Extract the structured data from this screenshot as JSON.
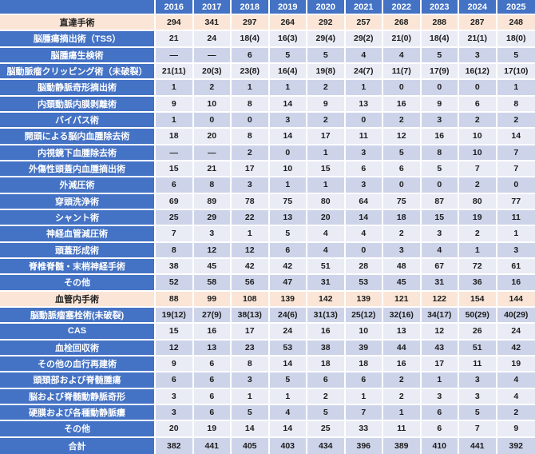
{
  "colors": {
    "header_blue": "#4472C4",
    "section_peach": "#FBE5D6",
    "band_light": "#E9EBF5",
    "band_dark": "#CDD4EA",
    "gridline": "#ffffff",
    "value_text": "#1c1c1c"
  },
  "table": {
    "corner_label": "",
    "years": [
      "2016",
      "2017",
      "2018",
      "2019",
      "2020",
      "2021",
      "2022",
      "2023",
      "2024",
      "2025"
    ],
    "rows": [
      {
        "kind": "section",
        "label": "直達手術",
        "values": [
          "294",
          "341",
          "297",
          "264",
          "292",
          "257",
          "268",
          "288",
          "287",
          "248"
        ]
      },
      {
        "kind": "data",
        "label": "脳腫瘍摘出術（TSS）",
        "values": [
          "21",
          "24",
          "18(4)",
          "16(3)",
          "29(4)",
          "29(2)",
          "21(0)",
          "18(4)",
          "21(1)",
          "18(0)"
        ]
      },
      {
        "kind": "data",
        "label": "脳腫瘍生検術",
        "values": [
          "―",
          "―",
          "6",
          "5",
          "5",
          "4",
          "4",
          "5",
          "3",
          "5"
        ]
      },
      {
        "kind": "data",
        "label": "脳動脈瘤クリッピング術（未破裂）",
        "values": [
          "21(11)",
          "20(3)",
          "23(8)",
          "16(4)",
          "19(8)",
          "24(7)",
          "11(7)",
          "17(9)",
          "16(12)",
          "17(10)"
        ]
      },
      {
        "kind": "data",
        "label": "脳動静脈奇形摘出術",
        "values": [
          "1",
          "2",
          "1",
          "1",
          "2",
          "1",
          "0",
          "0",
          "0",
          "1"
        ]
      },
      {
        "kind": "data",
        "label": "内頚動脈内膜剥離術",
        "values": [
          "9",
          "10",
          "8",
          "14",
          "9",
          "13",
          "16",
          "9",
          "6",
          "8"
        ]
      },
      {
        "kind": "data",
        "label": "バイパス術",
        "values": [
          "1",
          "0",
          "0",
          "3",
          "2",
          "0",
          "2",
          "3",
          "2",
          "2"
        ]
      },
      {
        "kind": "data",
        "label": "開頭による脳内血腫除去術",
        "values": [
          "18",
          "20",
          "8",
          "14",
          "17",
          "11",
          "12",
          "16",
          "10",
          "14"
        ]
      },
      {
        "kind": "data",
        "label": "内視鏡下血腫除去術",
        "values": [
          "―",
          "―",
          "2",
          "0",
          "1",
          "3",
          "5",
          "8",
          "10",
          "7"
        ]
      },
      {
        "kind": "data",
        "label": "外傷性頭蓋内血腫摘出術",
        "values": [
          "15",
          "21",
          "17",
          "10",
          "15",
          "6",
          "6",
          "5",
          "7",
          "7"
        ]
      },
      {
        "kind": "data",
        "label": "外減圧術",
        "values": [
          "6",
          "8",
          "3",
          "1",
          "1",
          "3",
          "0",
          "0",
          "2",
          "0"
        ]
      },
      {
        "kind": "data",
        "label": "穿頭洗浄術",
        "values": [
          "69",
          "89",
          "78",
          "75",
          "80",
          "64",
          "75",
          "87",
          "80",
          "77"
        ]
      },
      {
        "kind": "data",
        "label": "シャント術",
        "values": [
          "25",
          "29",
          "22",
          "13",
          "20",
          "14",
          "18",
          "15",
          "19",
          "11"
        ]
      },
      {
        "kind": "data",
        "label": "神経血管減圧術",
        "values": [
          "7",
          "3",
          "1",
          "5",
          "4",
          "4",
          "2",
          "3",
          "2",
          "1"
        ]
      },
      {
        "kind": "data",
        "label": "頭蓋形成術",
        "values": [
          "8",
          "12",
          "12",
          "6",
          "4",
          "0",
          "3",
          "4",
          "1",
          "3"
        ]
      },
      {
        "kind": "data",
        "label": "脊椎脊髄・末梢神経手術",
        "values": [
          "38",
          "45",
          "42",
          "42",
          "51",
          "28",
          "48",
          "67",
          "72",
          "61"
        ]
      },
      {
        "kind": "data",
        "label": "その他",
        "values": [
          "52",
          "58",
          "56",
          "47",
          "31",
          "53",
          "45",
          "31",
          "36",
          "16"
        ]
      },
      {
        "kind": "section",
        "label": "血管内手術",
        "values": [
          "88",
          "99",
          "108",
          "139",
          "142",
          "139",
          "121",
          "122",
          "154",
          "144"
        ]
      },
      {
        "kind": "data",
        "label": "脳動脈瘤塞栓術(未破裂)",
        "values": [
          "19(12)",
          "27(9)",
          "38(13)",
          "24(6)",
          "31(13)",
          "25(12)",
          "32(16)",
          "34(17)",
          "50(29)",
          "40(29)"
        ]
      },
      {
        "kind": "data",
        "label": "CAS",
        "values": [
          "15",
          "16",
          "17",
          "24",
          "16",
          "10",
          "13",
          "12",
          "26",
          "24"
        ]
      },
      {
        "kind": "data",
        "label": "血栓回収術",
        "values": [
          "12",
          "13",
          "23",
          "53",
          "38",
          "39",
          "44",
          "43",
          "51",
          "42"
        ]
      },
      {
        "kind": "data",
        "label": "その他の血行再建術",
        "values": [
          "9",
          "6",
          "8",
          "14",
          "18",
          "18",
          "16",
          "17",
          "11",
          "19"
        ]
      },
      {
        "kind": "data",
        "label": "頭頚部および脊髄腫瘍",
        "values": [
          "6",
          "6",
          "3",
          "5",
          "6",
          "6",
          "2",
          "1",
          "3",
          "4"
        ]
      },
      {
        "kind": "data",
        "label": "脳および脊髄動静脈奇形",
        "values": [
          "3",
          "6",
          "1",
          "1",
          "2",
          "1",
          "2",
          "3",
          "3",
          "4"
        ]
      },
      {
        "kind": "data",
        "label": "硬膜および各種動静脈瘻",
        "values": [
          "3",
          "6",
          "5",
          "4",
          "5",
          "7",
          "1",
          "6",
          "5",
          "2"
        ]
      },
      {
        "kind": "data",
        "label": "その他",
        "values": [
          "20",
          "19",
          "14",
          "14",
          "25",
          "33",
          "11",
          "6",
          "7",
          "9"
        ]
      },
      {
        "kind": "total",
        "label": "合計",
        "values": [
          "382",
          "441",
          "405",
          "403",
          "434",
          "396",
          "389",
          "410",
          "441",
          "392"
        ]
      }
    ]
  }
}
